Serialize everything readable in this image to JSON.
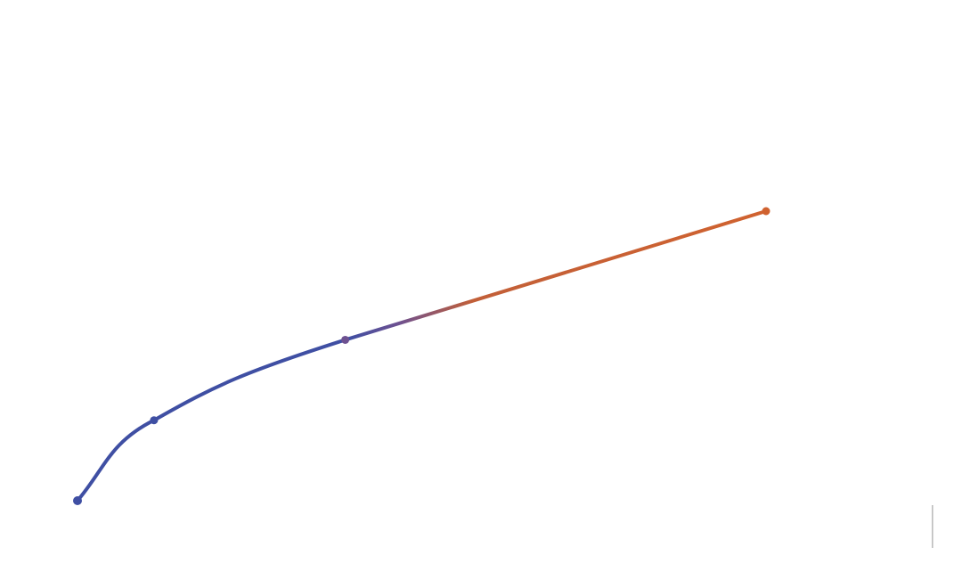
{
  "chart_data": {
    "type": "line",
    "title": "",
    "xlabel": "",
    "ylabel": "",
    "grid": false,
    "legend": "none",
    "xlim": [
      0,
      9
    ],
    "ylim": [
      0,
      4
    ],
    "x": [
      0,
      1,
      3.5,
      9
    ],
    "series": [
      {
        "values": [
          0,
          1,
          2,
          3.6
        ],
        "color_start": "#3f4fa3",
        "color_end": "#d0622f"
      }
    ]
  },
  "colors": {
    "blue": "#3f4fa3",
    "orange": "#d0622f",
    "purple": "#6d5191"
  },
  "icons": {
    "scroll_indicator": "vertical-scroll-indicator-icon"
  }
}
